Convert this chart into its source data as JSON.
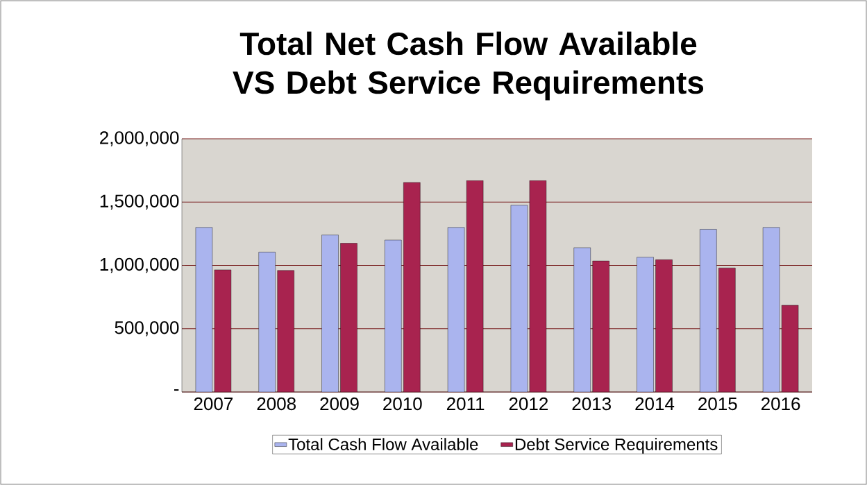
{
  "chart_data": {
    "type": "bar",
    "title": "Total Net Cash Flow Available VS Debt Service Requirements",
    "categories": [
      "2007",
      "2008",
      "2009",
      "2010",
      "2011",
      "2012",
      "2013",
      "2014",
      "2015",
      "2016"
    ],
    "series": [
      {
        "name": "Total Cash Flow Available",
        "color": "#aab4ee",
        "values": [
          1300000,
          1105000,
          1240000,
          1200000,
          1300000,
          1475000,
          1140000,
          1065000,
          1285000,
          1300000
        ]
      },
      {
        "name": "Debt Service Requirements",
        "color": "#a8234f",
        "values": [
          965000,
          960000,
          1175000,
          1655000,
          1670000,
          1670000,
          1035000,
          1045000,
          980000,
          685000
        ]
      }
    ],
    "ylim": [
      0,
      2000000
    ],
    "yticks": [
      {
        "value": 0,
        "label": "-"
      },
      {
        "value": 500000,
        "label": "500,000"
      },
      {
        "value": 1000000,
        "label": "1,000,000"
      },
      {
        "value": 1500000,
        "label": "1,500,000"
      },
      {
        "value": 2000000,
        "label": "2,000,000"
      }
    ],
    "grid": "y",
    "legend": "bottom"
  }
}
